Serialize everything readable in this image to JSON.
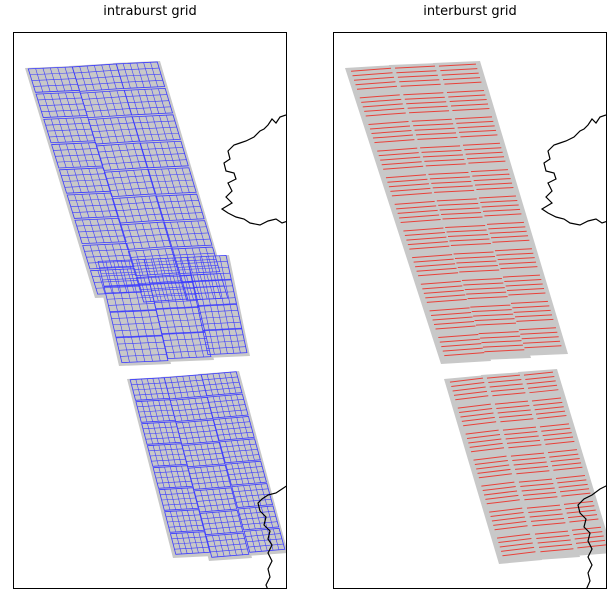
{
  "panels": [
    {
      "title": "intraburst grid",
      "grid_color": "#3b3bff",
      "grid_style": "mesh"
    },
    {
      "title": "interburst grid",
      "grid_color": "#e8413a",
      "grid_style": "lines"
    }
  ],
  "colors": {
    "footprint": "#c8c8c8",
    "coastline": "#000000",
    "frame": "#000000"
  },
  "icons": [
    "coastline-ireland",
    "coastline-scotland"
  ]
}
